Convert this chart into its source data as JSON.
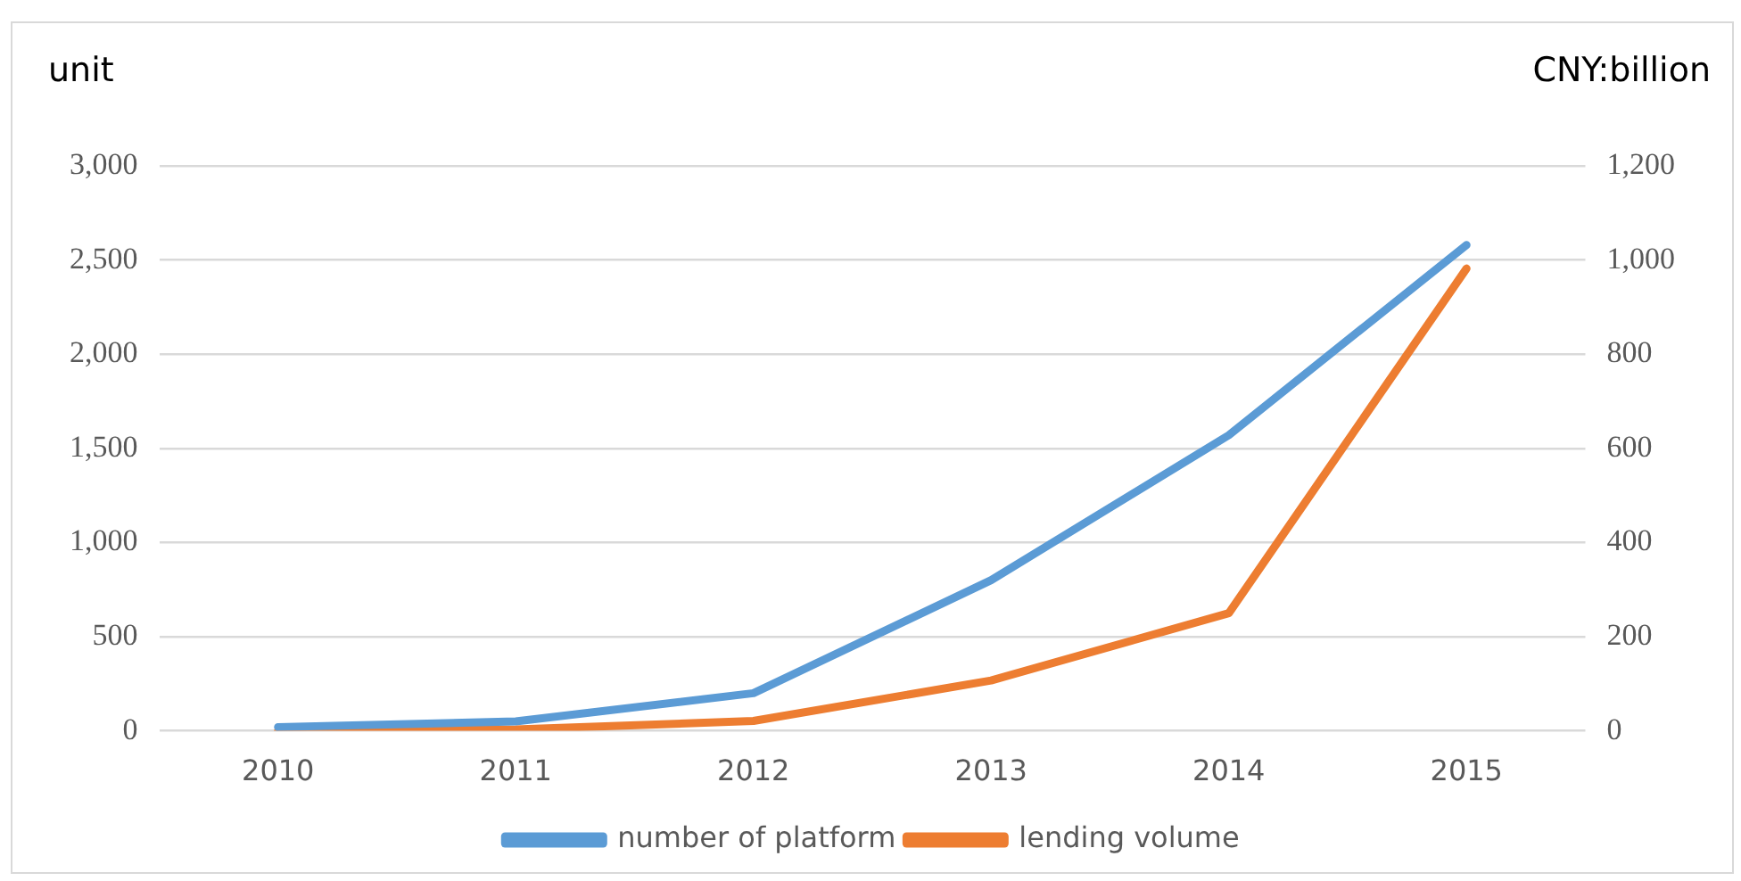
{
  "chart_data": {
    "type": "line",
    "ylabel": "unit",
    "y2label": "CNY:billion",
    "categories": [
      "2010",
      "2011",
      "2012",
      "2013",
      "2014",
      "2015"
    ],
    "series": [
      {
        "name": "number of platform",
        "color": "#5b9bd5",
        "values": [
          20,
          50,
          200,
          800,
          1570,
          2580
        ]
      },
      {
        "name": "lending volume",
        "color": "#ed7d31",
        "axis": "y2",
        "values": [
          0,
          3,
          21,
          107,
          250,
          982
        ]
      }
    ],
    "ylim": [
      0,
      3000
    ],
    "yticks": [
      {
        "value": 0,
        "label": "0"
      },
      {
        "value": 500,
        "label": "500"
      },
      {
        "value": 1000,
        "label": "1,000"
      },
      {
        "value": 1500,
        "label": "1,500"
      },
      {
        "value": 2000,
        "label": "2,000"
      },
      {
        "value": 2500,
        "label": "2,500"
      },
      {
        "value": 3000,
        "label": "3,000"
      }
    ],
    "y2lim": [
      0,
      1200
    ],
    "y2ticks": [
      {
        "value": 0,
        "label": "0"
      },
      {
        "value": 200,
        "label": "200"
      },
      {
        "value": 400,
        "label": "400"
      },
      {
        "value": 600,
        "label": "600"
      },
      {
        "value": 800,
        "label": "800"
      },
      {
        "value": 1000,
        "label": "1,000"
      },
      {
        "value": 1200,
        "label": "1,200"
      }
    ],
    "grid": "y",
    "legend": "bottom",
    "marker": "none",
    "line_style": "solid"
  }
}
